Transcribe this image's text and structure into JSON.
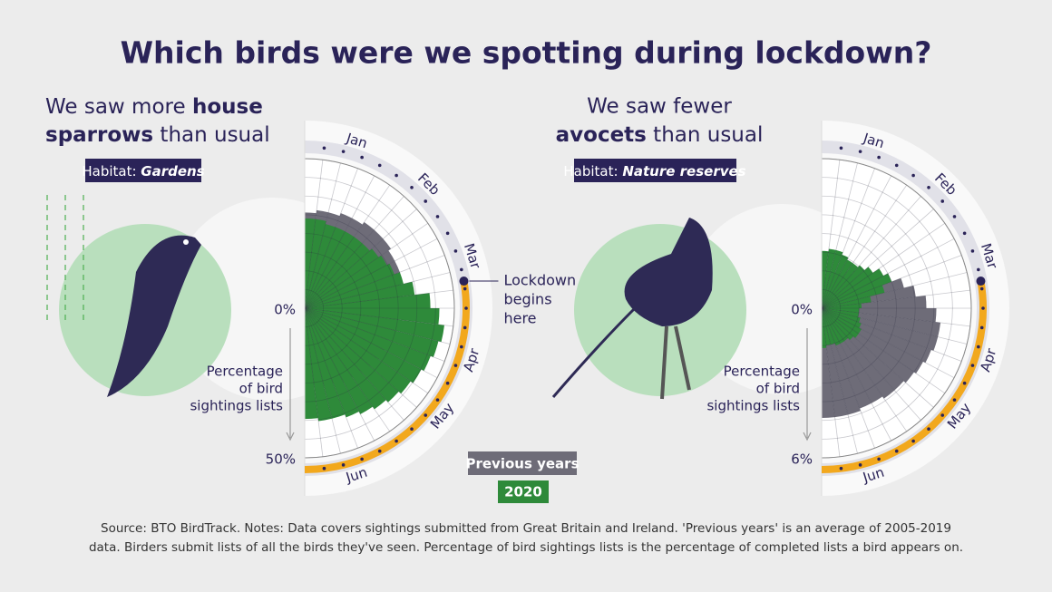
{
  "title": "Which birds were we spotting during lockdown?",
  "source": [
    "Source: BTO BirdTrack. Notes: Data covers sightings submitted from Great Britain and Ireland. 'Previous years' is an average of 2005-2019",
    "data. Birders submit lists of all the birds they've seen. Percentage of bird sightings lists is the percentage of completed lists a bird appears on."
  ],
  "chart_data": [
    {
      "type": "radial",
      "heading": [
        "We saw more",
        "house",
        "sparrows",
        "than usual"
      ],
      "habitat": [
        "Habitat:",
        "Gardens"
      ],
      "categories": [
        null,
        null,
        "Jan",
        null,
        null,
        null,
        "Feb",
        null,
        null,
        null,
        "Mar",
        null,
        null,
        null,
        null,
        "Apr",
        null,
        null,
        "May",
        null,
        null,
        null,
        null,
        "Jun",
        null,
        null
      ],
      "series": [
        {
          "name": "Previous years",
          "color": "#6e6c78",
          "values": [
            32,
            33,
            33,
            34,
            34,
            35,
            35,
            35,
            34,
            34,
            33,
            33,
            32,
            32,
            31,
            31,
            30,
            30,
            29,
            29,
            28,
            28,
            27,
            27,
            26,
            26
          ]
        },
        {
          "name": "2020",
          "color": "#2e8a3a",
          "values": [
            30,
            30,
            29,
            29,
            29,
            29,
            29,
            30,
            31,
            32,
            34,
            37,
            42,
            45,
            47,
            46,
            45,
            44,
            43,
            42,
            41,
            40,
            39,
            38,
            38,
            37
          ]
        }
      ],
      "ylim": [
        0,
        50
      ],
      "yticks": [
        {
          "value": 0,
          "label": "0%"
        },
        {
          "value": 50,
          "label": "50%"
        }
      ],
      "ylabel": [
        "Percentage",
        "of bird",
        "sightings lists"
      ],
      "lockdown": 11.6,
      "annotation": [
        "Lockdown",
        "begins",
        "here"
      ]
    },
    {
      "type": "radial",
      "heading": [
        "We saw fewer",
        "avocets",
        "than usual"
      ],
      "habitat": [
        "Habitat:",
        "Nature reserves"
      ],
      "categories": [
        null,
        null,
        "Jan",
        null,
        null,
        null,
        "Feb",
        null,
        null,
        null,
        "Mar",
        null,
        null,
        null,
        null,
        "Apr",
        null,
        null,
        "May",
        null,
        null,
        null,
        null,
        "Jun",
        null,
        null
      ],
      "series": [
        {
          "color": "#6e6c78",
          "values": [
            1.2,
            1.3,
            1.4,
            1.5,
            1.6,
            1.8,
            2.0,
            2.3,
            2.6,
            3.0,
            3.4,
            3.8,
            4.2,
            4.6,
            4.8,
            4.8,
            4.7,
            4.6,
            4.5,
            4.4,
            4.4,
            4.3,
            4.3,
            4.4,
            4.4,
            4.4
          ]
        },
        {
          "color": "#2e8a3a",
          "values": [
            2.3,
            2.4,
            2.4,
            2.3,
            2.2,
            2.2,
            2.3,
            2.5,
            2.8,
            3.0,
            2.6,
            2.0,
            1.6,
            1.5,
            1.5,
            1.6,
            1.7,
            1.8,
            1.8,
            1.7,
            1.6,
            1.6,
            1.6,
            1.5,
            1.5,
            1.6
          ]
        }
      ],
      "ylim": [
        0,
        6
      ],
      "yticks": [
        {
          "value": 0,
          "label": "0%"
        },
        {
          "value": 6,
          "label": "6%"
        }
      ],
      "ylabel": [
        "Percentage",
        "of bird",
        "sightings lists"
      ],
      "lockdown": 11.6
    }
  ]
}
